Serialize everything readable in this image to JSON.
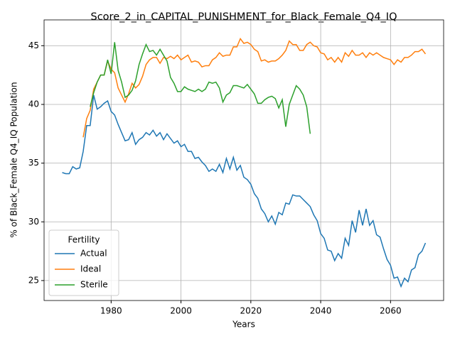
{
  "chart_data": {
    "type": "line",
    "title": "Score_2_in_CAPITAL_PUNISHMENT_for_Black_Female_Q4_IQ",
    "xlabel": "Years",
    "ylabel": "% of Black_Female Q4_IQ Population",
    "legend_title": "Fertility",
    "legend": "lower left",
    "grid": true,
    "xlim": [
      1960.8,
      2075.2
    ],
    "ylim": [
      23.3,
      47.2
    ],
    "xticks": [
      1980,
      2000,
      2020,
      2040,
      2060
    ],
    "yticks": [
      25,
      30,
      35,
      40,
      45
    ],
    "x": [
      1966,
      1967,
      1968,
      1969,
      1970,
      1971,
      1972,
      1973,
      1974,
      1975,
      1976,
      1977,
      1978,
      1979,
      1980,
      1981,
      1982,
      1983,
      1984,
      1985,
      1986,
      1987,
      1988,
      1989,
      1990,
      1991,
      1992,
      1993,
      1994,
      1995,
      1996,
      1997,
      1998,
      1999,
      2000,
      2001,
      2002,
      2003,
      2004,
      2005,
      2006,
      2007,
      2008,
      2009,
      2010,
      2011,
      2012,
      2013,
      2014,
      2015,
      2016,
      2017,
      2018,
      2019,
      2020,
      2021,
      2022,
      2023,
      2024,
      2025,
      2026,
      2027,
      2028,
      2029,
      2030,
      2031,
      2032,
      2033,
      2034,
      2035,
      2036,
      2037,
      2038,
      2039,
      2040,
      2041,
      2042,
      2043,
      2044,
      2045,
      2046,
      2047,
      2048,
      2049,
      2050,
      2051,
      2052,
      2053,
      2054,
      2055,
      2056,
      2057,
      2058,
      2059,
      2060,
      2061,
      2062,
      2063,
      2064,
      2065,
      2066,
      2067,
      2068,
      2069,
      2070
    ],
    "series": [
      {
        "name": "Actual",
        "color": "#1f77b4",
        "values": [
          34.2,
          34.1,
          34.1,
          34.7,
          34.5,
          34.6,
          36.0,
          38.2,
          38.2,
          40.8,
          39.6,
          39.8,
          40.1,
          40.3,
          39.4,
          39.1,
          38.3,
          37.6,
          36.9,
          37.0,
          37.6,
          36.6,
          37.0,
          37.2,
          37.6,
          37.4,
          37.8,
          37.3,
          37.6,
          37.0,
          37.5,
          37.1,
          36.7,
          36.9,
          36.4,
          36.6,
          36.0,
          36.0,
          35.4,
          35.5,
          35.1,
          34.8,
          34.3,
          34.5,
          34.3,
          34.9,
          34.2,
          35.4,
          34.5,
          35.5,
          34.4,
          34.8,
          33.8,
          33.6,
          33.2,
          32.4,
          32.0,
          31.1,
          30.7,
          30.0,
          30.5,
          29.8,
          30.8,
          30.6,
          31.6,
          31.5,
          32.3,
          32.2,
          32.2,
          31.9,
          31.6,
          31.3,
          30.6,
          30.1,
          29.0,
          28.6,
          27.6,
          27.5,
          26.7,
          27.3,
          26.9,
          28.6,
          28.0,
          30.1,
          29.1,
          31.0,
          29.7,
          31.1,
          29.7,
          30.1,
          28.9,
          28.7,
          27.7,
          26.8,
          26.3,
          25.2,
          25.3,
          24.5,
          25.2,
          24.9,
          25.9,
          26.1,
          27.2,
          27.5,
          28.2
        ]
      },
      {
        "name": "Ideal",
        "color": "#ff7f0e",
        "values": [
          null,
          null,
          null,
          null,
          null,
          null,
          37.2,
          38.8,
          39.5,
          41.3,
          41.9,
          42.5,
          42.5,
          43.7,
          43.0,
          42.7,
          41.4,
          40.8,
          40.2,
          40.9,
          41.8,
          41.4,
          41.7,
          42.4,
          43.4,
          43.8,
          44.0,
          44.0,
          43.5,
          44.0,
          43.9,
          44.1,
          43.9,
          44.2,
          43.8,
          44.0,
          44.2,
          43.6,
          43.7,
          43.6,
          43.2,
          43.3,
          43.3,
          43.8,
          44.0,
          44.4,
          44.1,
          44.2,
          44.2,
          44.9,
          44.9,
          45.6,
          45.2,
          45.3,
          45.1,
          44.7,
          44.5,
          43.7,
          43.8,
          43.6,
          43.7,
          43.7,
          43.9,
          44.2,
          44.6,
          45.4,
          45.1,
          45.1,
          44.6,
          44.6,
          45.1,
          45.3,
          45.0,
          44.9,
          44.4,
          44.3,
          43.8,
          44.0,
          43.6,
          44.0,
          43.6,
          44.4,
          44.1,
          44.6,
          44.2,
          44.2,
          44.4,
          44.0,
          44.4,
          44.2,
          44.4,
          44.2,
          44.0,
          43.9,
          43.8,
          43.4,
          43.8,
          43.6,
          44.0,
          44.0,
          44.2,
          44.5,
          44.5,
          44.7,
          44.3
        ]
      },
      {
        "name": "Sterile",
        "color": "#2ca02c",
        "values": [
          null,
          null,
          null,
          null,
          null,
          null,
          null,
          null,
          39.8,
          41.0,
          41.9,
          42.5,
          42.5,
          43.8,
          42.6,
          45.3,
          42.9,
          41.9,
          40.6,
          40.8,
          41.2,
          42.0,
          43.4,
          44.3,
          45.1,
          44.5,
          44.6,
          44.2,
          44.7,
          44.2,
          43.7,
          42.3,
          41.8,
          41.1,
          41.1,
          41.5,
          41.3,
          41.2,
          41.1,
          41.3,
          41.1,
          41.3,
          41.9,
          41.8,
          41.9,
          41.4,
          40.2,
          40.8,
          41.0,
          41.6,
          41.6,
          41.5,
          41.4,
          41.7,
          41.3,
          40.9,
          40.1,
          40.1,
          40.4,
          40.6,
          40.7,
          40.5,
          39.7,
          40.4,
          38.1,
          40.0,
          40.8,
          41.6,
          41.3,
          40.8,
          39.8,
          37.5,
          null,
          null,
          null,
          null,
          null,
          null,
          null,
          null,
          null,
          null,
          null,
          null,
          null,
          null,
          null,
          null,
          null,
          null,
          null,
          null,
          null,
          null,
          null,
          null,
          null,
          null,
          null,
          null,
          null,
          null,
          null,
          null,
          null
        ]
      }
    ]
  }
}
